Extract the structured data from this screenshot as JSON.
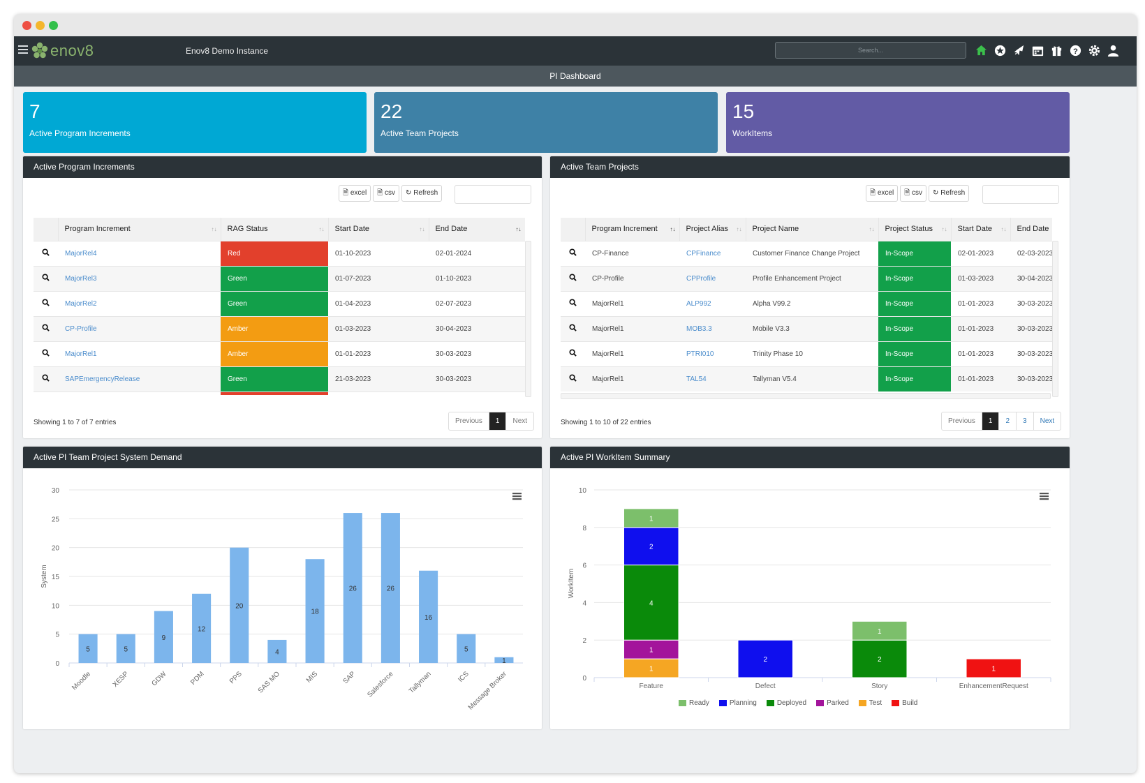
{
  "app": {
    "instance": "Enov8 Demo Instance",
    "brand": "enov8",
    "search_placeholder": "Search...",
    "page_title": "PI Dashboard"
  },
  "nav_icons": [
    "home-icon",
    "star-icon",
    "rocket-icon",
    "calendar-icon",
    "gift-icon",
    "help-icon",
    "gear-icon",
    "user-icon"
  ],
  "tiles": [
    {
      "value": "7",
      "label": "Active Program Increments",
      "color": "#00a8d4"
    },
    {
      "value": "22",
      "label": "Active Team Projects",
      "color": "#3e81a6"
    },
    {
      "value": "15",
      "label": "WorkItems",
      "color": "#625ba5"
    }
  ],
  "pi_panel": {
    "title": "Active Program Increments",
    "buttons": {
      "excel": "excel",
      "csv": "csv",
      "refresh": "Refresh"
    },
    "columns": [
      "Program Increment",
      "RAG Status",
      "Start Date",
      "End Date"
    ],
    "rows": [
      {
        "pi": "MajorRel4",
        "rag": "Red",
        "start": "01-10-2023",
        "end": "02-01-2024"
      },
      {
        "pi": "MajorRel3",
        "rag": "Green",
        "start": "01-07-2023",
        "end": "01-10-2023"
      },
      {
        "pi": "MajorRel2",
        "rag": "Green",
        "start": "01-04-2023",
        "end": "02-07-2023"
      },
      {
        "pi": "CP-Profile",
        "rag": "Amber",
        "start": "01-03-2023",
        "end": "30-04-2023"
      },
      {
        "pi": "MajorRel1",
        "rag": "Amber",
        "start": "01-01-2023",
        "end": "30-03-2023"
      },
      {
        "pi": "SAPEmergencyRelease",
        "rag": "Green",
        "start": "21-03-2023",
        "end": "30-03-2023"
      }
    ],
    "info": "Showing 1 to 7 of 7 entries",
    "pager": {
      "prev": "Previous",
      "page": "1",
      "next": "Next"
    }
  },
  "tp_panel": {
    "title": "Active Team Projects",
    "buttons": {
      "excel": "excel",
      "csv": "csv",
      "refresh": "Refresh"
    },
    "columns": [
      "Program Increment",
      "Project Alias",
      "Project Name",
      "Project Status",
      "Start Date",
      "End Date"
    ],
    "rows": [
      {
        "pi": "CP-Finance",
        "alias": "CPFinance",
        "name": "Customer Finance Change Project",
        "status": "In-Scope",
        "start": "02-01-2023",
        "end": "02-03-2023"
      },
      {
        "pi": "CP-Profile",
        "alias": "CPProfile",
        "name": "Profile Enhancement Project",
        "status": "In-Scope",
        "start": "01-03-2023",
        "end": "30-04-2023"
      },
      {
        "pi": "MajorRel1",
        "alias": "ALP992",
        "name": "Alpha V99.2",
        "status": "In-Scope",
        "start": "01-01-2023",
        "end": "30-03-2023"
      },
      {
        "pi": "MajorRel1",
        "alias": "MOB3.3",
        "name": "Mobile V3.3",
        "status": "In-Scope",
        "start": "01-01-2023",
        "end": "30-03-2023"
      },
      {
        "pi": "MajorRel1",
        "alias": "PTRI010",
        "name": "Trinity Phase 10",
        "status": "In-Scope",
        "start": "01-01-2023",
        "end": "30-03-2023"
      },
      {
        "pi": "MajorRel1",
        "alias": "TAL54",
        "name": "Tallyman V5.4",
        "status": "In-Scope",
        "start": "01-01-2023",
        "end": "30-03-2023"
      }
    ],
    "info": "Showing 1 to 10 of 22 entries",
    "pager": {
      "prev": "Previous",
      "p1": "1",
      "p2": "2",
      "p3": "3",
      "next": "Next"
    }
  },
  "demand_panel": {
    "title": "Active PI Team Project System Demand"
  },
  "workitem_panel": {
    "title": "Active PI WorkItem Summary"
  },
  "chart_data": [
    {
      "type": "bar",
      "title": "",
      "ylabel": "System",
      "xlabel": "",
      "ylim": [
        0,
        30
      ],
      "yticks": [
        0,
        5,
        10,
        15,
        20,
        25,
        30
      ],
      "categories": [
        "Moodle",
        "XESP",
        "GDW",
        "PDM",
        "PPS",
        "SAS MO",
        "MIS",
        "SAP",
        "Salesforce",
        "Tallyman",
        "ICS",
        "Message Broker"
      ],
      "values": [
        5,
        5,
        9,
        12,
        20,
        4,
        18,
        26,
        26,
        16,
        5,
        1
      ],
      "color": "#7cb5ec"
    },
    {
      "type": "bar",
      "stacked": true,
      "title": "",
      "ylabel": "WorkItem",
      "xlabel": "",
      "ylim": [
        0,
        10
      ],
      "yticks": [
        0,
        2,
        4,
        6,
        8,
        10
      ],
      "categories": [
        "Feature",
        "Defect",
        "Story",
        "EnhancementRequest"
      ],
      "series": [
        {
          "name": "Ready",
          "color": "#7cbf6b",
          "values": [
            1,
            0,
            1,
            0
          ]
        },
        {
          "name": "Planning",
          "color": "#0f0fee",
          "values": [
            2,
            2,
            0,
            0
          ]
        },
        {
          "name": "Deployed",
          "color": "#0a8a0a",
          "values": [
            4,
            0,
            2,
            0
          ]
        },
        {
          "name": "Parked",
          "color": "#a3149b",
          "values": [
            1,
            0,
            0,
            0
          ]
        },
        {
          "name": "Test",
          "color": "#f5a623",
          "values": [
            1,
            0,
            0,
            0
          ]
        },
        {
          "name": "Build",
          "color": "#f01212",
          "values": [
            0,
            0,
            0,
            1
          ]
        }
      ]
    }
  ]
}
